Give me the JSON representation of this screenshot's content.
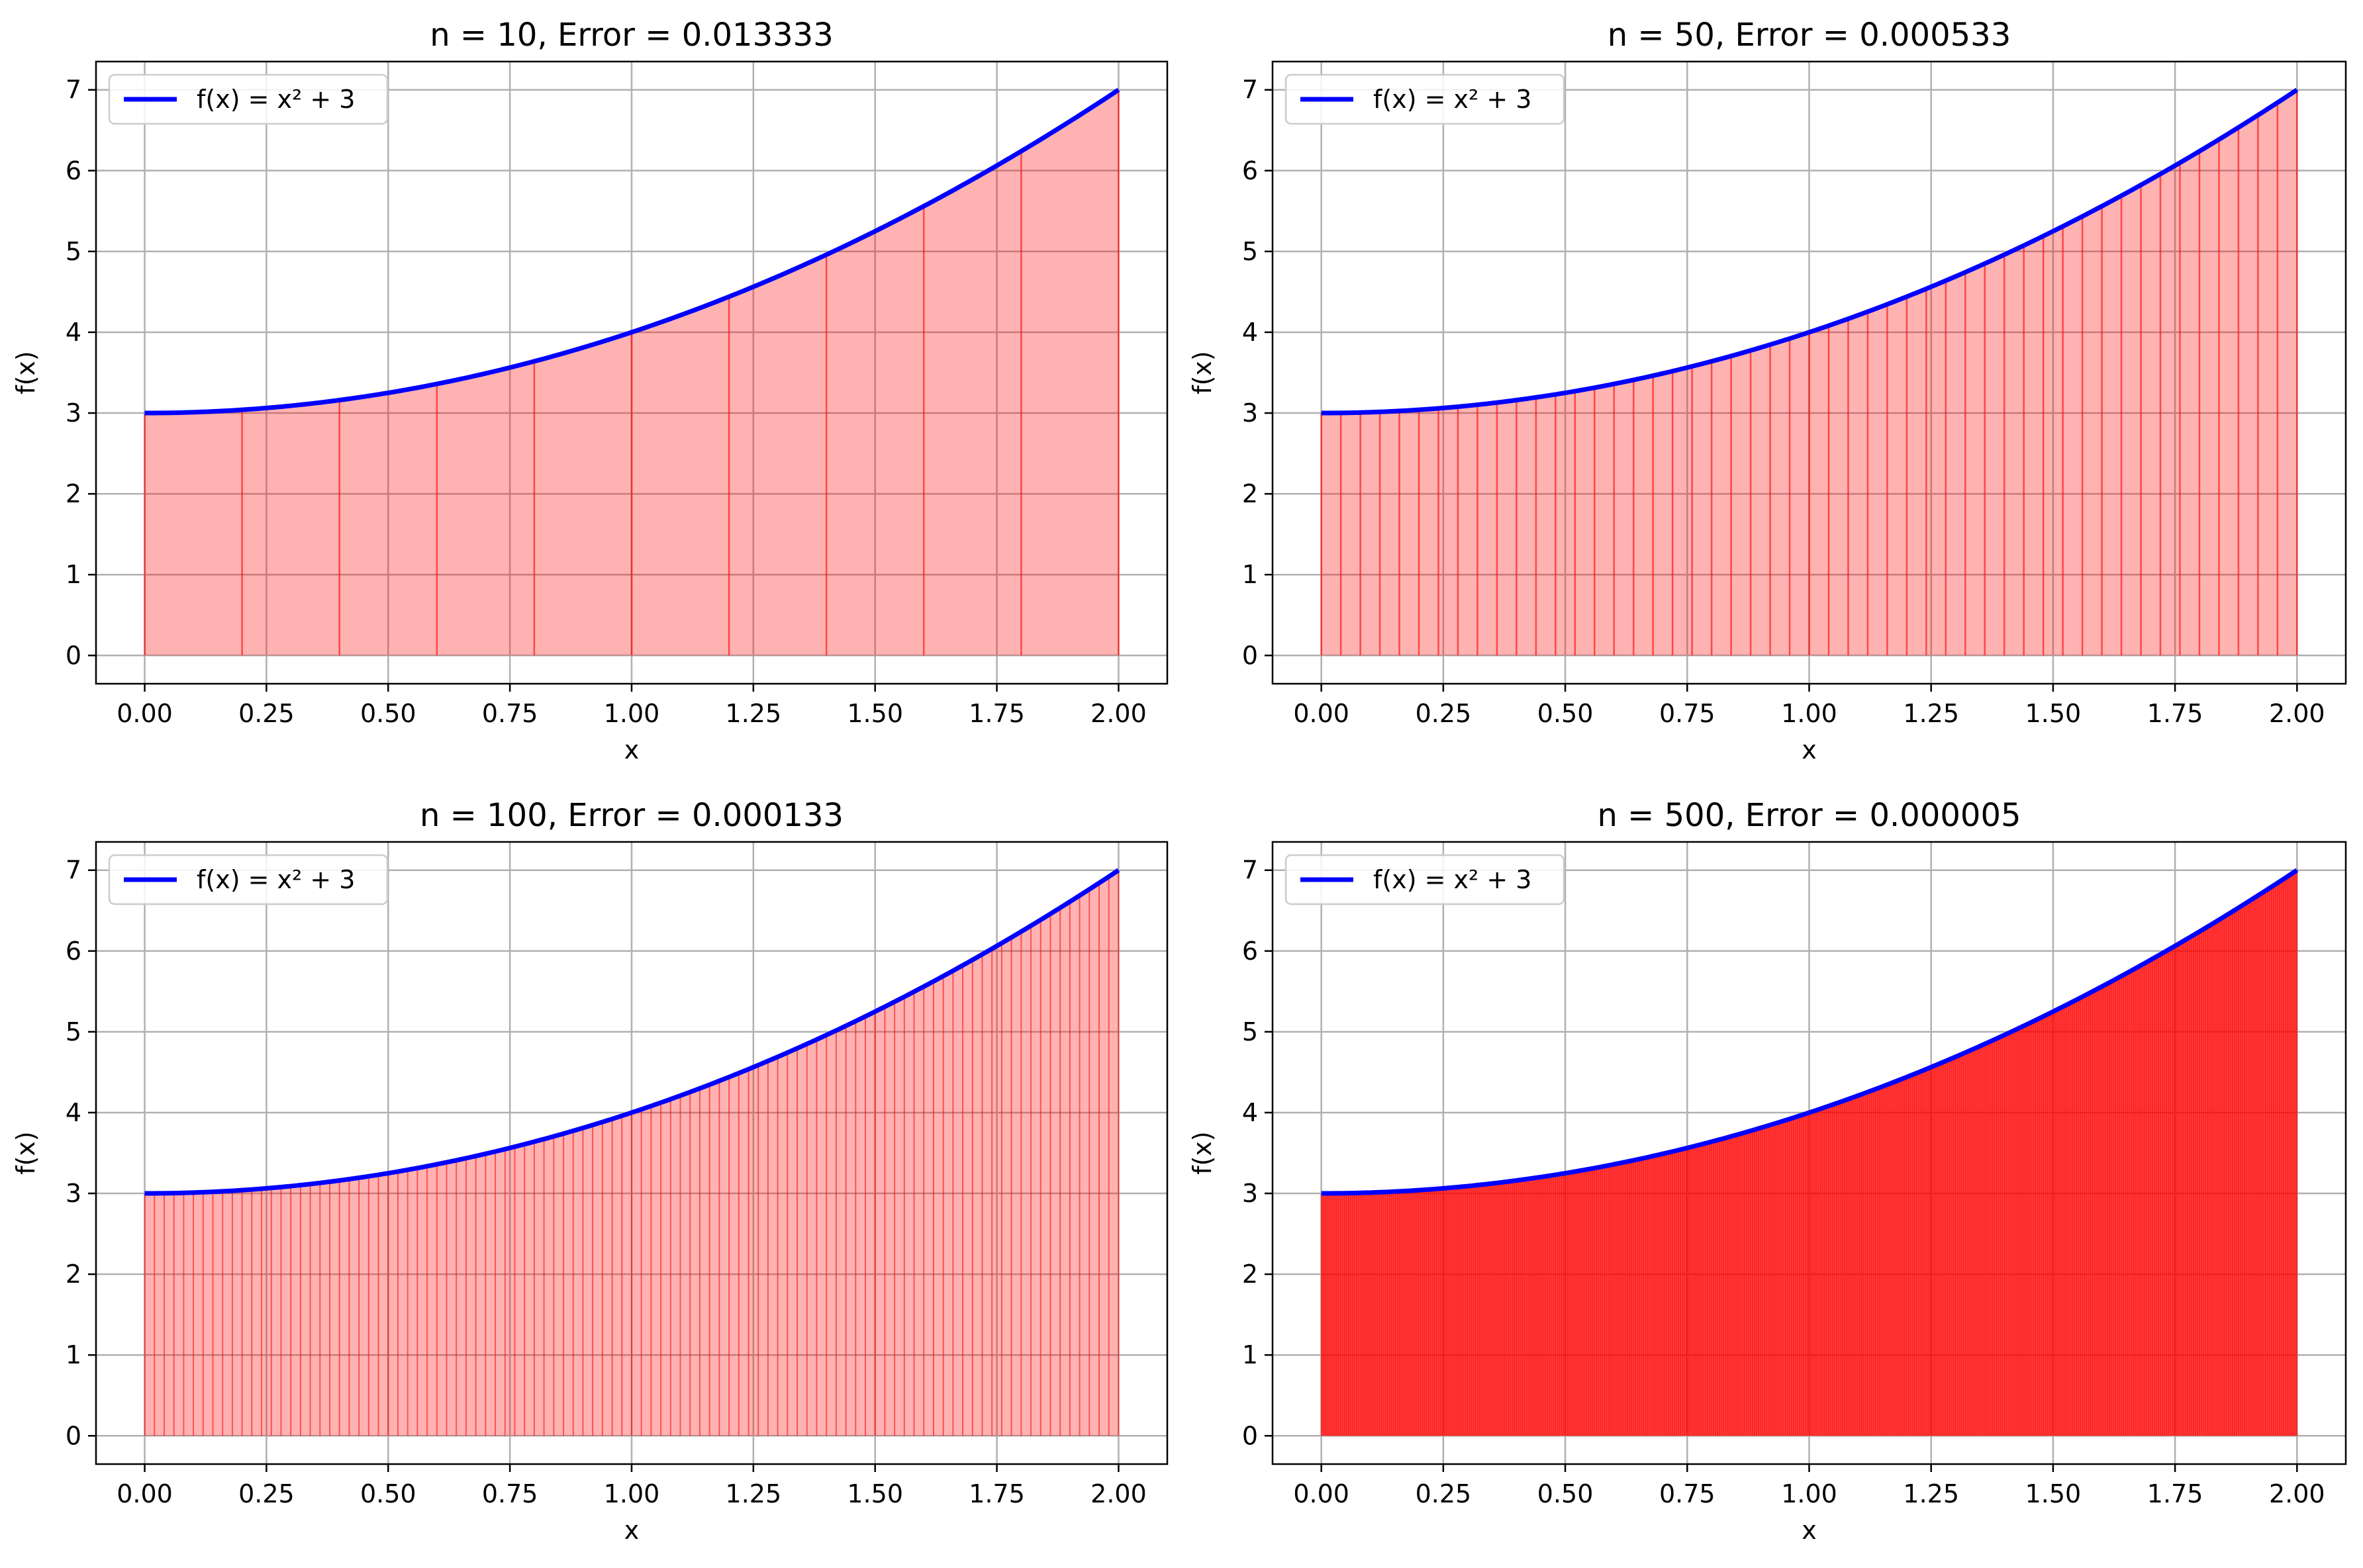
{
  "chart_data": [
    {
      "type": "area",
      "title": "n = 10, Error = 0.013333",
      "xlabel": "x",
      "ylabel": "f(x)",
      "xlim": [
        -0.1,
        2.1
      ],
      "ylim": [
        -0.35,
        7.35
      ],
      "xticks": [
        0,
        0.25,
        0.5,
        0.75,
        1.0,
        1.25,
        1.5,
        1.75,
        2.0
      ],
      "xtick_labels": [
        "0.00",
        "0.25",
        "0.50",
        "0.75",
        "1.00",
        "1.25",
        "1.50",
        "1.75",
        "2.00"
      ],
      "yticks": [
        0,
        1,
        2,
        3,
        4,
        5,
        6,
        7
      ],
      "ytick_labels": [
        "0",
        "1",
        "2",
        "3",
        "4",
        "5",
        "6",
        "7"
      ],
      "grid": true,
      "legend_position": "upper left",
      "series": [
        {
          "name": "f(x) = x² + 3",
          "function": "x^2 + 3",
          "x_range": [
            0,
            2
          ],
          "color": "#0000ff"
        }
      ],
      "n": 10,
      "partition_points": [
        0,
        0.2,
        0.4,
        0.6,
        0.8,
        1.0,
        1.2,
        1.4,
        1.6,
        1.8,
        2.0
      ],
      "fill_color": "#ff0000",
      "fill_opacity": 0.3
    },
    {
      "type": "area",
      "title": "n = 50, Error = 0.000533",
      "xlabel": "x",
      "ylabel": "f(x)",
      "xlim": [
        -0.1,
        2.1
      ],
      "ylim": [
        -0.35,
        7.35
      ],
      "xticks": [
        0,
        0.25,
        0.5,
        0.75,
        1.0,
        1.25,
        1.5,
        1.75,
        2.0
      ],
      "xtick_labels": [
        "0.00",
        "0.25",
        "0.50",
        "0.75",
        "1.00",
        "1.25",
        "1.50",
        "1.75",
        "2.00"
      ],
      "yticks": [
        0,
        1,
        2,
        3,
        4,
        5,
        6,
        7
      ],
      "ytick_labels": [
        "0",
        "1",
        "2",
        "3",
        "4",
        "5",
        "6",
        "7"
      ],
      "grid": true,
      "legend_position": "upper left",
      "series": [
        {
          "name": "f(x) = x² + 3",
          "function": "x^2 + 3",
          "x_range": [
            0,
            2
          ],
          "color": "#0000ff"
        }
      ],
      "n": 50,
      "fill_color": "#ff0000",
      "fill_opacity": 0.3
    },
    {
      "type": "area",
      "title": "n = 100, Error = 0.000133",
      "xlabel": "x",
      "ylabel": "f(x)",
      "xlim": [
        -0.1,
        2.1
      ],
      "ylim": [
        -0.35,
        7.35
      ],
      "xticks": [
        0,
        0.25,
        0.5,
        0.75,
        1.0,
        1.25,
        1.5,
        1.75,
        2.0
      ],
      "xtick_labels": [
        "0.00",
        "0.25",
        "0.50",
        "0.75",
        "1.00",
        "1.25",
        "1.50",
        "1.75",
        "2.00"
      ],
      "yticks": [
        0,
        1,
        2,
        3,
        4,
        5,
        6,
        7
      ],
      "ytick_labels": [
        "0",
        "1",
        "2",
        "3",
        "4",
        "5",
        "6",
        "7"
      ],
      "grid": true,
      "legend_position": "upper left",
      "series": [
        {
          "name": "f(x) = x² + 3",
          "function": "x^2 + 3",
          "x_range": [
            0,
            2
          ],
          "color": "#0000ff"
        }
      ],
      "n": 100,
      "fill_color": "#ff0000",
      "fill_opacity": 0.3
    },
    {
      "type": "area",
      "title": "n = 500, Error = 0.000005",
      "xlabel": "x",
      "ylabel": "f(x)",
      "xlim": [
        -0.1,
        2.1
      ],
      "ylim": [
        -0.35,
        7.35
      ],
      "xticks": [
        0,
        0.25,
        0.5,
        0.75,
        1.0,
        1.25,
        1.5,
        1.75,
        2.0
      ],
      "xtick_labels": [
        "0.00",
        "0.25",
        "0.50",
        "0.75",
        "1.00",
        "1.25",
        "1.50",
        "1.75",
        "2.00"
      ],
      "yticks": [
        0,
        1,
        2,
        3,
        4,
        5,
        6,
        7
      ],
      "ytick_labels": [
        "0",
        "1",
        "2",
        "3",
        "4",
        "5",
        "6",
        "7"
      ],
      "grid": true,
      "legend_position": "upper left",
      "series": [
        {
          "name": "f(x) = x² + 3",
          "function": "x^2 + 3",
          "x_range": [
            0,
            2
          ],
          "color": "#0000ff"
        }
      ],
      "n": 500,
      "fill_color": "#ff0000",
      "fill_opacity": 0.3
    }
  ],
  "colors": {
    "curve": "#0000ff",
    "fill": "#ff0000",
    "partition_line": "#ff0000",
    "grid": "#b0b0b0",
    "axes": "#000000",
    "legend_border": "#cccccc"
  }
}
